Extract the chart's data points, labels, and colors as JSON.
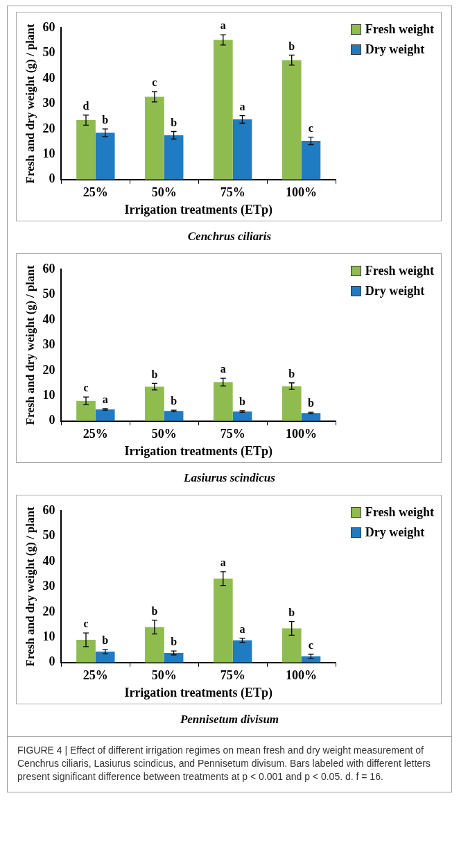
{
  "chart_data": [
    {
      "type": "bar",
      "title": "Cenchrus ciliaris",
      "xlabel": "Irrigation treatments (ETp)",
      "ylabel": "Fresh and dry weight (g) / plant",
      "categories": [
        "25%",
        "50%",
        "75%",
        "100%"
      ],
      "ylim": [
        0,
        60
      ],
      "yticks": [
        0,
        10,
        20,
        30,
        40,
        50,
        60
      ],
      "legend": "top right",
      "series": [
        {
          "name": "Fresh weight",
          "color": "#8fbc4f",
          "values": [
            23.5,
            32.7,
            55.2,
            47.2
          ],
          "errors": [
            2,
            2,
            2,
            2
          ],
          "value_labels": [
            "d",
            "c",
            "a",
            "b"
          ]
        },
        {
          "name": "Dry weight",
          "color": "#1f7bc2",
          "values": [
            18.5,
            17.5,
            23.8,
            15.3
          ],
          "errors": [
            1.5,
            1.5,
            1.5,
            1.5
          ],
          "value_labels": [
            "b",
            "b",
            "a",
            "c"
          ]
        }
      ]
    },
    {
      "type": "bar",
      "title": "Lasiurus scindicus",
      "xlabel": "Irrigation treatments (ETp)",
      "ylabel": "Fresh and dry weight (g) / plant",
      "categories": [
        "25%",
        "50%",
        "75%",
        "100%"
      ],
      "ylim": [
        0,
        60
      ],
      "yticks": [
        0,
        10,
        20,
        30,
        40,
        50,
        60
      ],
      "legend": "top right",
      "series": [
        {
          "name": "Fresh weight",
          "color": "#8fbc4f",
          "values": [
            8,
            13.6,
            15.4,
            13.8
          ],
          "errors": [
            1.5,
            1.3,
            1.5,
            1.3
          ],
          "value_labels": [
            "c",
            "b",
            "a",
            "b"
          ]
        },
        {
          "name": "Dry weight",
          "color": "#1f7bc2",
          "values": [
            4.6,
            4,
            3.8,
            3.2
          ],
          "errors": [
            0.3,
            0.3,
            0.3,
            0.3
          ],
          "value_labels": [
            "a",
            "b",
            "b",
            "b"
          ]
        }
      ]
    },
    {
      "type": "bar",
      "title": "Pennisetum divisum",
      "xlabel": "Irrigation treatments (ETp)",
      "ylabel": "Fresh and dry weight (g) / plant",
      "categories": [
        "25%",
        "50%",
        "75%",
        "100%"
      ],
      "ylim": [
        0,
        60
      ],
      "yticks": [
        0,
        10,
        20,
        30,
        40,
        50,
        60
      ],
      "legend": "top right",
      "annotations": [
        "FIGURE 4 | Effect of different irrigation regimes on mean fresh and dry weight measurement of Cenchrus ciliaris, Lasiurus scindicus, and Pennisetum divisum. Bars labeled with different letters present significant difference between treatments at p < 0.001 and p < 0.05. d. f = 16."
      ],
      "series": [
        {
          "name": "Fresh weight",
          "color": "#8fbc4f",
          "values": [
            9,
            14,
            33.2,
            13.5
          ],
          "errors": [
            2.7,
            2.7,
            2.7,
            2.7
          ],
          "value_labels": [
            "c",
            "b",
            "a",
            "b"
          ]
        },
        {
          "name": "Dry weight",
          "color": "#1f7bc2",
          "values": [
            4.3,
            3.8,
            8.8,
            2.5
          ],
          "errors": [
            0.8,
            0.8,
            0.8,
            0.8
          ],
          "value_labels": [
            "b",
            "b",
            "a",
            "c"
          ]
        }
      ]
    }
  ]
}
